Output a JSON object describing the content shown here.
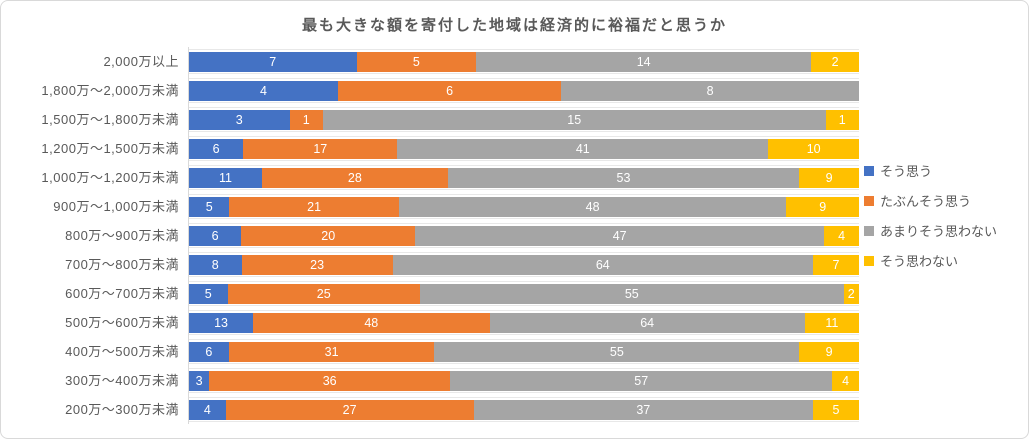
{
  "chart_data": {
    "type": "bar",
    "orientation": "horizontal",
    "stacked": true,
    "percent_stacked": true,
    "title": "最も大きな額を寄付した地域は経済的に裕福だと思うか",
    "xlabel": "",
    "ylabel": "",
    "grid": "row-separator-lines",
    "legend_position": "right",
    "data_labels": "inside-center-white",
    "categories": [
      "2,000万以上",
      "1,800万〜2,000万未満",
      "1,500万〜1,800万未満",
      "1,200万〜1,500万未満",
      "1,000万〜1,200万未満",
      "900万〜1,000万未満",
      "800万〜900万未満",
      "700万〜800万未満",
      "600万〜700万未満",
      "500万〜600万未満",
      "400万〜500万未満",
      "300万〜400万未満",
      "200万〜300万未満"
    ],
    "series": [
      {
        "key": "agree",
        "name": "そう思う",
        "color": "#4472C4",
        "values": [
          7,
          4,
          3,
          6,
          11,
          5,
          6,
          8,
          5,
          13,
          6,
          3,
          4
        ]
      },
      {
        "key": "maybe-agree",
        "name": "たぶんそう思う",
        "color": "#ED7D31",
        "values": [
          5,
          6,
          1,
          17,
          28,
          21,
          20,
          23,
          25,
          48,
          31,
          36,
          27
        ]
      },
      {
        "key": "not-really",
        "name": "あまりそう思わない",
        "color": "#A5A5A5",
        "values": [
          14,
          8,
          15,
          41,
          53,
          48,
          47,
          64,
          55,
          64,
          55,
          57,
          37
        ]
      },
      {
        "key": "disagree",
        "name": "そう思わない",
        "color": "#FFC000",
        "values": [
          2,
          0,
          1,
          10,
          9,
          9,
          4,
          7,
          2,
          11,
          9,
          4,
          5
        ]
      }
    ]
  },
  "styles": {
    "title_color": "#595959",
    "label_color": "#595959",
    "axis_line_color": "#D9D9D9",
    "separator_line_color": "#E8E8E8",
    "border_color": "#D9D9D9",
    "data_label_color": "#FFFFFF"
  }
}
